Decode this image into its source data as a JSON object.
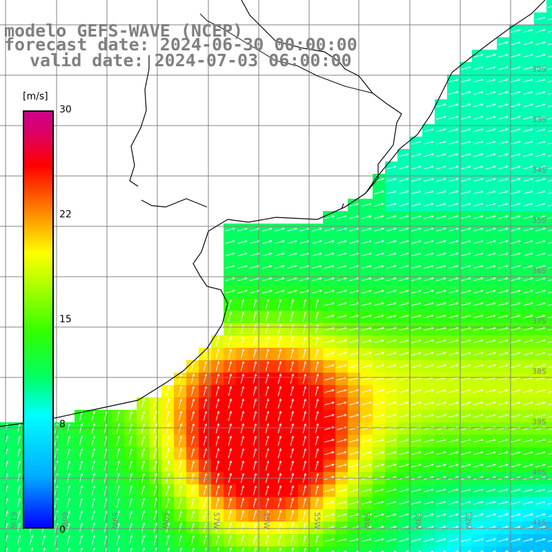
{
  "header": {
    "line1": "modelo GEFS-WAVE (NCEP)",
    "line2": "forecast date: 2024-06-30 00:00:00",
    "line3": "valid date: 2024-07-03 06:00:00"
  },
  "colorbar": {
    "unit": "[m/s]",
    "ticks": [
      "30",
      "22",
      "15",
      "8",
      "0"
    ]
  },
  "lat_labels": [
    "32S",
    "33S",
    "34S",
    "35S",
    "36S",
    "37S",
    "38S",
    "39S",
    "40S",
    "41S"
  ],
  "lon_labels": [
    "61W",
    "60W",
    "59W",
    "58W",
    "57W",
    "56W",
    "55W",
    "54W",
    "53W",
    "52W"
  ],
  "colors": {
    "land": "#ffffff",
    "coast": "#000000",
    "grid": "#808080",
    "arrow": "#ffffff",
    "text": "#808080"
  }
}
